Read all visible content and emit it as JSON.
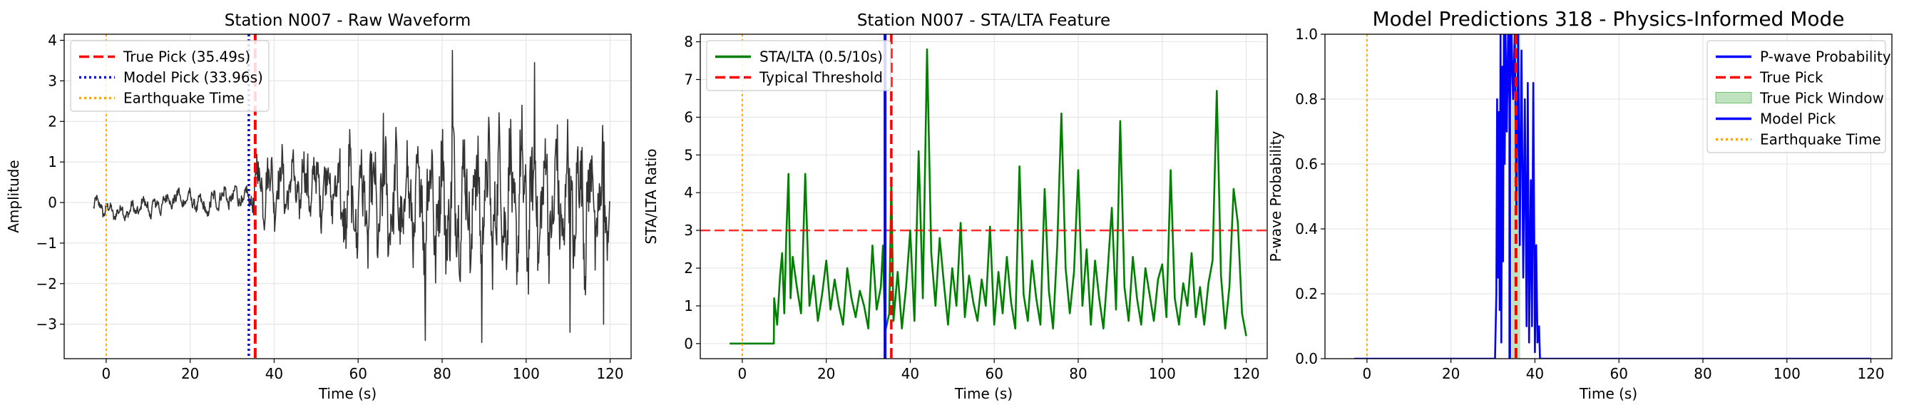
{
  "chart_data": [
    {
      "type": "line",
      "title": "Station N007 - Raw Waveform",
      "xlabel": "Time (s)",
      "ylabel": "Amplitude",
      "xlim": [
        -10,
        125
      ],
      "ylim": [
        -3.85,
        4.15
      ],
      "xticks": [
        0,
        20,
        40,
        60,
        80,
        100,
        120
      ],
      "yticks": [
        -3,
        -2,
        -1,
        0,
        1,
        2,
        3,
        4
      ],
      "ytick_labels": [
        "−3",
        "−2",
        "−1",
        "0",
        "1",
        "2",
        "3",
        "4"
      ],
      "grid": true,
      "legend_position": "top-left",
      "series": [
        {
          "kind": "waveform",
          "color": "#333333",
          "segments": [
            {
              "t0": -3,
              "t1": 10,
              "amp": 0.22,
              "offset": 0.0,
              "trend": -0.25
            },
            {
              "t0": 10,
              "t1": 25,
              "amp": 0.25,
              "offset": -0.2,
              "trend": 0.3
            },
            {
              "t0": 25,
              "t1": 35,
              "amp": 0.3,
              "offset": 0.05,
              "trend": 0.1
            },
            {
              "t0": 35,
              "t1": 55,
              "amp": 0.9,
              "offset": 0.4,
              "trend": 0.0
            },
            {
              "t0": 55,
              "t1": 75,
              "amp": 1.5,
              "offset": 0.0,
              "trend": 0.0
            },
            {
              "t0": 75,
              "t1": 120,
              "amp": 1.9,
              "offset": 0.0,
              "trend": 0.0
            }
          ],
          "peaks": [
            [
              82.5,
              3.75
            ],
            [
              102,
              3.45
            ],
            [
              76,
              -3.4
            ],
            [
              89.5,
              -3.45
            ],
            [
              110.5,
              -3.2
            ],
            [
              118.5,
              -3.0
            ],
            [
              66,
              2.2
            ],
            [
              48,
              1.2
            ],
            [
              99,
              2.4
            ]
          ]
        }
      ],
      "vlines": [
        {
          "name": "True Pick (35.49s)",
          "x": 35.49,
          "color": "#ff0000",
          "style": "dashed",
          "width": 4
        },
        {
          "name": "Model Pick (33.96s)",
          "x": 33.96,
          "color": "#0000dd",
          "style": "dotted",
          "width": 3.5
        },
        {
          "name": "Earthquake Time",
          "x": 0,
          "color": "#ffa500",
          "style": "dotted",
          "width": 2
        }
      ]
    },
    {
      "type": "line",
      "title": "Station N007 - STA/LTA Feature",
      "xlabel": "Time (s)",
      "ylabel": "STA/LTA Ratio",
      "xlim": [
        -10,
        125
      ],
      "ylim": [
        -0.4,
        8.2
      ],
      "xticks": [
        0,
        20,
        40,
        60,
        80,
        100,
        120
      ],
      "yticks": [
        0,
        1,
        2,
        3,
        4,
        5,
        6,
        7,
        8
      ],
      "grid": true,
      "legend_position": "top-left",
      "series": [
        {
          "name": "STA/LTA (0.5/10s)",
          "color": "#008000",
          "x": [
            -3,
            7.5,
            7.6,
            8.3,
            9,
            9.5,
            10,
            10.5,
            11,
            11.5,
            12,
            13,
            14,
            15,
            16,
            17,
            18,
            19,
            20,
            21,
            22,
            23,
            24,
            25,
            26,
            27,
            28,
            29,
            30,
            31,
            32,
            33,
            33.5,
            34,
            35,
            35.5,
            36,
            37,
            38,
            39,
            40,
            41,
            42,
            43,
            44,
            45,
            46,
            47,
            48,
            49,
            50,
            51,
            52,
            53,
            54,
            55,
            56,
            57,
            58,
            59,
            60,
            61,
            62,
            63,
            64,
            65,
            66,
            67,
            68,
            69,
            70,
            71,
            72,
            73,
            74,
            75,
            76,
            77,
            78,
            79,
            80,
            81,
            82,
            83,
            84,
            85,
            86,
            87,
            88,
            89,
            90,
            91,
            92,
            93,
            94,
            95,
            96,
            97,
            98,
            99,
            100,
            101,
            102,
            103,
            104,
            105,
            106,
            107,
            108,
            109,
            110,
            111,
            112,
            113,
            114,
            115,
            116,
            117,
            118,
            119,
            120
          ],
          "y": [
            0,
            0,
            1.2,
            0.5,
            1.8,
            2.4,
            0.8,
            2.9,
            4.5,
            1.2,
            2.3,
            1.5,
            0.8,
            4.5,
            1.0,
            1.8,
            0.6,
            1.3,
            2.2,
            0.9,
            1.7,
            1.0,
            0.5,
            2.0,
            1.2,
            0.7,
            1.4,
            1.0,
            0.4,
            2.6,
            0.9,
            1.5,
            2.6,
            0.3,
            0.8,
            4.3,
            0.6,
            1.9,
            0.4,
            1.5,
            3.0,
            0.6,
            5.1,
            1.2,
            7.8,
            2.4,
            1.0,
            2.8,
            1.6,
            0.5,
            2.0,
            1.0,
            3.2,
            0.7,
            1.8,
            1.1,
            0.6,
            1.7,
            1.0,
            3.1,
            0.5,
            1.9,
            0.8,
            2.3,
            1.1,
            0.4,
            4.7,
            1.3,
            0.6,
            2.2,
            1.2,
            0.5,
            4.1,
            1.4,
            0.4,
            2.6,
            6.1,
            2.0,
            0.8,
            1.9,
            4.6,
            1.0,
            2.5,
            0.5,
            2.2,
            1.2,
            0.4,
            1.9,
            3.6,
            0.9,
            5.9,
            1.5,
            0.6,
            2.3,
            1.2,
            0.5,
            2.0,
            1.3,
            0.6,
            1.7,
            2.1,
            0.7,
            4.6,
            1.2,
            0.5,
            1.6,
            1.0,
            2.4,
            0.7,
            1.5,
            0.5,
            1.6,
            2.2,
            6.7,
            1.8,
            0.4,
            1.5,
            4.1,
            3.2,
            0.8,
            0.2
          ]
        }
      ],
      "hlines": [
        {
          "name": "Typical Threshold",
          "y": 3,
          "color": "#ff0000",
          "style": "dashed"
        }
      ],
      "vlines": [
        {
          "x": 34.0,
          "color": "#0000ff",
          "style": "solid",
          "width": 4
        },
        {
          "x": 35.49,
          "color": "#ff0000",
          "style": "dashed",
          "width": 3.5
        },
        {
          "x": 0,
          "color": "#ffa500",
          "style": "dotted",
          "width": 2
        }
      ]
    },
    {
      "type": "line",
      "title": "Model Predictions 318 - Physics-Informed Mode",
      "xlabel": "Time (s)",
      "ylabel": "P-wave Probability",
      "xlim": [
        -10,
        125
      ],
      "ylim": [
        0,
        1
      ],
      "xticks": [
        0,
        20,
        40,
        60,
        80,
        100,
        120
      ],
      "yticks": [
        0,
        0.2,
        0.4,
        0.6,
        0.8,
        1.0
      ],
      "ytick_labels": [
        "0.0",
        "0.2",
        "0.4",
        "0.6",
        "0.8",
        "1.0"
      ],
      "grid": true,
      "legend_position": "top-right",
      "series": [
        {
          "name": "P-wave Probability",
          "color": "#0000ff",
          "x": [
            -3,
            30.5,
            30.8,
            31.0,
            31.2,
            31.4,
            31.6,
            31.8,
            32.0,
            32.2,
            32.4,
            32.6,
            32.8,
            33.0,
            33.3,
            33.6,
            34.0,
            34.4,
            34.8,
            35.2,
            35.6,
            36.0,
            36.4,
            36.8,
            37.2,
            37.6,
            38.0,
            38.3,
            38.6,
            39.0,
            39.3,
            39.6,
            40.0,
            40.3,
            40.6,
            41.0,
            41.2,
            42,
            120
          ],
          "y": [
            0,
            0,
            0.2,
            0.8,
            0.25,
            0.76,
            0.15,
            1.0,
            0.05,
            0.9,
            0.3,
            1.0,
            0.6,
            1.0,
            0.7,
            1.0,
            0.75,
            1.0,
            0.8,
            1.0,
            0.45,
            1.0,
            0.35,
            0.95,
            0.25,
            0.8,
            0.1,
            0.85,
            0.05,
            0.55,
            0.1,
            0.85,
            0.02,
            0.35,
            0.05,
            0.1,
            0.0,
            0,
            0
          ]
        }
      ],
      "vlines": [
        {
          "name": "True Pick",
          "x": 35.49,
          "color": "#ff0000",
          "style": "dashed",
          "width": 4
        },
        {
          "name": "Model Pick",
          "x": 34.0,
          "color": "#0000ff",
          "style": "solid",
          "width": 3.5
        },
        {
          "name": "Earthquake Time",
          "x": 0,
          "color": "#ffa500",
          "style": "dotted",
          "width": 2
        }
      ],
      "spans": [
        {
          "name": "True Pick Window",
          "x0": 34.5,
          "x1": 36.5,
          "color": "#2ca02c"
        }
      ]
    }
  ],
  "legends": [
    {
      "panel": 0,
      "entries": [
        {
          "label": "True Pick (35.49s)",
          "color": "#ff0000",
          "style": "dashed"
        },
        {
          "label": "Model Pick (33.96s)",
          "color": "#0000dd",
          "style": "dotted"
        },
        {
          "label": "Earthquake Time",
          "color": "#ffa500",
          "style": "dotted"
        }
      ]
    },
    {
      "panel": 1,
      "entries": [
        {
          "label": "STA/LTA (0.5/10s)",
          "color": "#008000",
          "style": "solid"
        },
        {
          "label": "Typical Threshold",
          "color": "#ff0000",
          "style": "dashed"
        }
      ]
    },
    {
      "panel": 2,
      "entries": [
        {
          "label": "P-wave Probability",
          "color": "#0000ff",
          "style": "solid"
        },
        {
          "label": "True Pick",
          "color": "#ff0000",
          "style": "dashed"
        },
        {
          "label": "True Pick Window",
          "color": "#2ca02c",
          "style": "patch"
        },
        {
          "label": "Model Pick",
          "color": "#0000ff",
          "style": "solid"
        },
        {
          "label": "Earthquake Time",
          "color": "#ffa500",
          "style": "dotted"
        }
      ]
    }
  ]
}
